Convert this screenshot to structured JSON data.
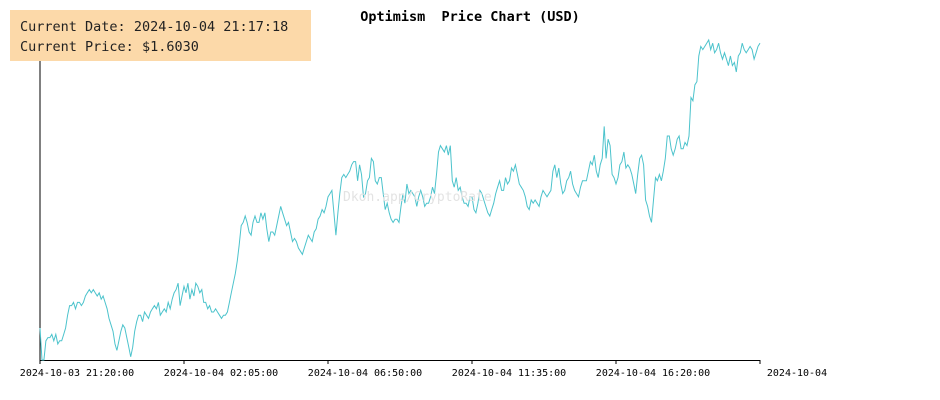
{
  "info": {
    "date_label": "Current Date:",
    "date_value": "2024-10-04 21:17:18",
    "price_label": "Current Price:",
    "price_value": "$1.6030"
  },
  "watermark": "Dkoh.app/CryptoRate",
  "colors": {
    "line": "#4cc3cc",
    "axis": "#000000",
    "info_bg": "#fcd9a9"
  },
  "chart_data": {
    "type": "line",
    "title": "Optimism  Price Chart (USD)",
    "xlabel": "",
    "ylabel": "",
    "grid": false,
    "y_axis_labels": false,
    "ylim": [
      0,
      1
    ],
    "x_ticks": [
      "2024-10-03 21:20:00",
      "2024-10-04 02:05:00",
      "2024-10-04 06:50:00",
      "2024-10-04 11:35:00",
      "2024-10-04 16:20:00",
      "2024-10-04"
    ],
    "series": [
      {
        "values": [
          0.1,
          0.0,
          0.0,
          0.06,
          0.07,
          0.07,
          0.08,
          0.06,
          0.08,
          0.05,
          0.06,
          0.06,
          0.08,
          0.1,
          0.14,
          0.17,
          0.17,
          0.18,
          0.16,
          0.18,
          0.18,
          0.17,
          0.18,
          0.2,
          0.21,
          0.22,
          0.21,
          0.22,
          0.21,
          0.2,
          0.21,
          0.19,
          0.2,
          0.18,
          0.16,
          0.13,
          0.11,
          0.09,
          0.05,
          0.03,
          0.06,
          0.09,
          0.11,
          0.1,
          0.07,
          0.04,
          0.01,
          0.04,
          0.09,
          0.12,
          0.14,
          0.14,
          0.12,
          0.15,
          0.14,
          0.13,
          0.15,
          0.16,
          0.17,
          0.16,
          0.18,
          0.14,
          0.15,
          0.16,
          0.15,
          0.18,
          0.16,
          0.19,
          0.21,
          0.22,
          0.24,
          0.17,
          0.2,
          0.23,
          0.21,
          0.24,
          0.19,
          0.22,
          0.2,
          0.24,
          0.23,
          0.21,
          0.22,
          0.18,
          0.18,
          0.16,
          0.17,
          0.15,
          0.15,
          0.16,
          0.15,
          0.14,
          0.13,
          0.14,
          0.14,
          0.15,
          0.18,
          0.21,
          0.24,
          0.27,
          0.31,
          0.36,
          0.42,
          0.43,
          0.45,
          0.43,
          0.4,
          0.39,
          0.43,
          0.45,
          0.43,
          0.43,
          0.46,
          0.44,
          0.46,
          0.41,
          0.37,
          0.4,
          0.4,
          0.39,
          0.42,
          0.45,
          0.48,
          0.46,
          0.44,
          0.42,
          0.43,
          0.4,
          0.37,
          0.38,
          0.37,
          0.35,
          0.34,
          0.33,
          0.35,
          0.37,
          0.39,
          0.38,
          0.37,
          0.4,
          0.41,
          0.44,
          0.45,
          0.47,
          0.46,
          0.48,
          0.51,
          0.52,
          0.53,
          0.46,
          0.39,
          0.46,
          0.52,
          0.57,
          0.58,
          0.57,
          0.58,
          0.59,
          0.61,
          0.62,
          0.62,
          0.56,
          0.61,
          0.58,
          0.51,
          0.52,
          0.56,
          0.57,
          0.63,
          0.62,
          0.56,
          0.55,
          0.57,
          0.57,
          0.52,
          0.47,
          0.49,
          0.46,
          0.44,
          0.43,
          0.44,
          0.44,
          0.43,
          0.48,
          0.52,
          0.49,
          0.55,
          0.52,
          0.53,
          0.52,
          0.51,
          0.48,
          0.51,
          0.53,
          0.51,
          0.48,
          0.49,
          0.49,
          0.51,
          0.54,
          0.52,
          0.58,
          0.65,
          0.67,
          0.66,
          0.65,
          0.67,
          0.64,
          0.67,
          0.56,
          0.54,
          0.57,
          0.53,
          0.54,
          0.51,
          0.49,
          0.49,
          0.48,
          0.51,
          0.51,
          0.47,
          0.46,
          0.49,
          0.53,
          0.52,
          0.5,
          0.48,
          0.46,
          0.45,
          0.47,
          0.49,
          0.52,
          0.54,
          0.56,
          0.53,
          0.53,
          0.57,
          0.55,
          0.56,
          0.6,
          0.59,
          0.61,
          0.58,
          0.55,
          0.54,
          0.53,
          0.51,
          0.48,
          0.47,
          0.5,
          0.49,
          0.5,
          0.49,
          0.48,
          0.51,
          0.53,
          0.52,
          0.51,
          0.52,
          0.53,
          0.59,
          0.61,
          0.57,
          0.6,
          0.55,
          0.52,
          0.53,
          0.56,
          0.57,
          0.59,
          0.55,
          0.53,
          0.52,
          0.51,
          0.54,
          0.56,
          0.56,
          0.56,
          0.59,
          0.62,
          0.61,
          0.64,
          0.59,
          0.57,
          0.61,
          0.63,
          0.73,
          0.63,
          0.69,
          0.67,
          0.58,
          0.57,
          0.55,
          0.57,
          0.61,
          0.62,
          0.65,
          0.6,
          0.61,
          0.6,
          0.58,
          0.55,
          0.52,
          0.58,
          0.63,
          0.64,
          0.61,
          0.5,
          0.48,
          0.45,
          0.43,
          0.5,
          0.57,
          0.56,
          0.58,
          0.56,
          0.59,
          0.63,
          0.7,
          0.7,
          0.66,
          0.64,
          0.66,
          0.69,
          0.7,
          0.66,
          0.66,
          0.68,
          0.67,
          0.7,
          0.82,
          0.81,
          0.86,
          0.87,
          0.95,
          0.98,
          0.97,
          0.98,
          0.99,
          1.0,
          0.97,
          0.99,
          0.96,
          0.97,
          0.99,
          0.96,
          0.94,
          0.96,
          0.94,
          0.92,
          0.95,
          0.92,
          0.93,
          0.9,
          0.95,
          0.96,
          0.99,
          0.97,
          0.96,
          0.97,
          0.98,
          0.97,
          0.94,
          0.96,
          0.98,
          0.99
        ]
      }
    ]
  }
}
